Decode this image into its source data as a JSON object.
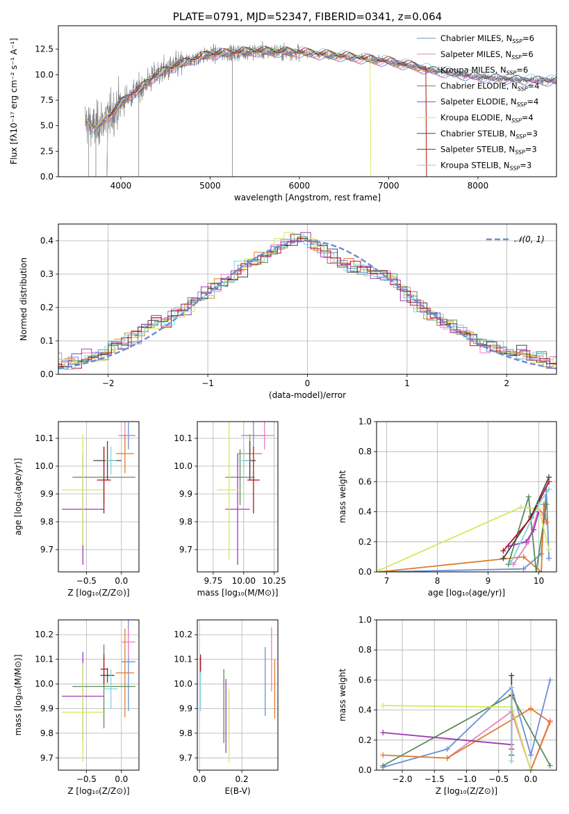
{
  "colors": {
    "Chabrier MILES": "#6a8fd8",
    "Salpeter MILES": "#e87fbf",
    "Kroupa MILES": "#e07a2e",
    "Chabrier ELODIE": "#5c8a5c",
    "Salpeter ELODIE": "#9a3cb0",
    "Kroupa ELODIE": "#d4e85a",
    "Chabrier STELIB": "#444444",
    "Salpeter STELIB": "#b3121b",
    "Kroupa STELIB": "#80d4e0",
    "data": "#808080",
    "normal": "#6a8fd8",
    "grid": "#b0b0b0"
  },
  "chart_data": [
    {
      "id": "spectrum",
      "type": "line",
      "title": "PLATE=0791, MJD=52347, FIBERID=0341, z=0.064",
      "xlabel": "wavelength [Angstrom, rest frame]",
      "ylabel": "Flux [fλ10⁻¹⁷ erg cm⁻² s⁻¹ A⁻¹]",
      "xlim": [
        3300,
        8880
      ],
      "ylim": [
        0,
        14.8
      ],
      "xticks": [
        4000,
        5000,
        6000,
        7000,
        8000
      ],
      "yticks": [
        0.0,
        2.5,
        5.0,
        7.5,
        10.0,
        12.5
      ],
      "grid": false,
      "legend_position": "top-right",
      "legend": [
        {
          "model": "Chabrier MILES",
          "label": "Chabrier MILES, N_SSP=6"
        },
        {
          "model": "Salpeter MILES",
          "label": "Salpeter MILES, N_SSP=6"
        },
        {
          "model": "Kroupa MILES",
          "label": "Kroupa MILES, N_SSP=6"
        },
        {
          "model": "Chabrier ELODIE",
          "label": "Chabrier ELODIE, N_SSP=4"
        },
        {
          "model": "Salpeter ELODIE",
          "label": "Salpeter ELODIE, N_SSP=4"
        },
        {
          "model": "Kroupa ELODIE",
          "label": "Kroupa ELODIE, N_SSP=4"
        },
        {
          "model": "Chabrier STELIB",
          "label": "Chabrier STELIB, N_SSP=3"
        },
        {
          "model": "Salpeter STELIB",
          "label": "Salpeter STELIB, N_SSP=3"
        },
        {
          "model": "Kroupa STELIB",
          "label": "Kroupa STELIB, N_SSP=3"
        }
      ],
      "continuum": {
        "wavelength": [
          3600,
          3700,
          3800,
          3900,
          4000,
          4100,
          4200,
          4300,
          4400,
          4600,
          4800,
          5000,
          5500,
          6000,
          6500,
          7000,
          7300,
          7500,
          8000,
          8500,
          8880
        ],
        "flux": [
          5.5,
          4.8,
          5.5,
          6.2,
          7.2,
          8.0,
          8.5,
          9.3,
          10.0,
          10.8,
          11.5,
          12.0,
          12.3,
          12.2,
          11.8,
          11.3,
          10.8,
          10.4,
          9.8,
          9.5,
          9.4
        ]
      }
    },
    {
      "id": "residuals",
      "type": "histogram",
      "xlabel": "(data-model)/error",
      "ylabel": "Normed distribution",
      "xlim": [
        -2.5,
        2.5
      ],
      "ylim": [
        0,
        0.45
      ],
      "xticks": [
        -2,
        -1,
        0,
        1,
        2
      ],
      "yticks": [
        0.0,
        0.1,
        0.2,
        0.3,
        0.4
      ],
      "grid": true,
      "legend_position": "top-right",
      "reference_label": "𝒩(0, 1)",
      "profile": {
        "x": [
          -2.4,
          -2.2,
          -2.0,
          -1.8,
          -1.6,
          -1.4,
          -1.2,
          -1.0,
          -0.8,
          -0.6,
          -0.4,
          -0.2,
          0.0,
          0.2,
          0.4,
          0.6,
          0.8,
          1.0,
          1.2,
          1.4,
          1.6,
          1.8,
          2.0,
          2.2,
          2.4
        ],
        "y": [
          0.03,
          0.05,
          0.07,
          0.1,
          0.15,
          0.16,
          0.2,
          0.25,
          0.28,
          0.33,
          0.36,
          0.4,
          0.41,
          0.36,
          0.33,
          0.31,
          0.3,
          0.24,
          0.18,
          0.15,
          0.12,
          0.09,
          0.07,
          0.06,
          0.04
        ]
      }
    },
    {
      "id": "age-vs-Z",
      "type": "scatter",
      "xlabel": "Z [log₁₀(Z/Z⊙)]",
      "ylabel": "age  [log₁₀(age/yr)]",
      "xlim": [
        -0.9,
        0.25
      ],
      "ylim": [
        9.62,
        10.16
      ],
      "xticks": [
        -0.5,
        0.0
      ],
      "yticks": [
        9.7,
        9.8,
        9.9,
        10.0,
        10.1
      ],
      "grid": true,
      "points": [
        {
          "model": "Chabrier MILES",
          "x": 0.1,
          "y": 10.11,
          "xerr": 0.1,
          "yerr": 0.05
        },
        {
          "model": "Salpeter MILES",
          "x": 0.05,
          "y": 10.11,
          "xerr": 0.1,
          "yerr": 0.05
        },
        {
          "model": "Kroupa MILES",
          "x": 0.05,
          "y": 10.045,
          "xerr": 0.13,
          "yerr": 0.07
        },
        {
          "model": "Chabrier ELODIE",
          "x": -0.25,
          "y": 9.96,
          "xerr": 0.45,
          "yerr": 0.1
        },
        {
          "model": "Salpeter ELODIE",
          "x": -0.55,
          "y": 9.845,
          "xerr": 0.3,
          "yerr": 0.2
        },
        {
          "model": "Kroupa ELODIE",
          "x": -0.55,
          "y": 9.915,
          "xerr": 0.3,
          "yerr": 0.2
        },
        {
          "model": "Chabrier STELIB",
          "x": -0.2,
          "y": 10.02,
          "xerr": 0.2,
          "yerr": 0.07
        },
        {
          "model": "Salpeter STELIB",
          "x": -0.25,
          "y": 9.95,
          "xerr": 0.1,
          "yerr": 0.12
        },
        {
          "model": "Kroupa STELIB",
          "x": -0.15,
          "y": 10.02,
          "xerr": 0.08,
          "yerr": 0.05
        }
      ]
    },
    {
      "id": "age-vs-mass",
      "type": "scatter",
      "xlabel": "mass [log₁₀(M/M⊙)]",
      "ylabel": "",
      "xlim": [
        9.62,
        10.28
      ],
      "ylim": [
        9.62,
        10.16
      ],
      "xticks": [
        9.75,
        10.0,
        10.25
      ],
      "yticks": [
        9.7,
        9.8,
        9.9,
        10.0,
        10.1
      ],
      "grid": true,
      "points": [
        {
          "model": "Chabrier MILES",
          "x": 10.08,
          "y": 10.11,
          "xerr": 0.1,
          "yerr": 0.05
        },
        {
          "model": "Salpeter MILES",
          "x": 10.17,
          "y": 10.11,
          "xerr": 0.08,
          "yerr": 0.05
        },
        {
          "model": "Kroupa MILES",
          "x": 10.05,
          "y": 10.045,
          "xerr": 0.1,
          "yerr": 0.07
        },
        {
          "model": "Chabrier ELODIE",
          "x": 9.97,
          "y": 9.96,
          "xerr": 0.12,
          "yerr": 0.1
        },
        {
          "model": "Salpeter ELODIE",
          "x": 9.95,
          "y": 9.845,
          "xerr": 0.1,
          "yerr": 0.2
        },
        {
          "model": "Kroupa ELODIE",
          "x": 9.88,
          "y": 9.915,
          "xerr": 0.1,
          "yerr": 0.25
        },
        {
          "model": "Chabrier STELIB",
          "x": 10.05,
          "y": 10.02,
          "xerr": 0.05,
          "yerr": 0.07
        },
        {
          "model": "Salpeter STELIB",
          "x": 10.08,
          "y": 9.95,
          "xerr": 0.05,
          "yerr": 0.12
        },
        {
          "model": "Kroupa STELIB",
          "x": 10.0,
          "y": 10.02,
          "xerr": 0.05,
          "yerr": 0.05
        }
      ]
    },
    {
      "id": "weight-vs-age",
      "type": "line",
      "xlabel": "age  [log₁₀(age/yr)]",
      "ylabel": "mass weight",
      "xlim": [
        6.8,
        10.35
      ],
      "ylim": [
        0,
        1.0
      ],
      "xticks": [
        7,
        8,
        9,
        10
      ],
      "yticks": [
        0.0,
        0.2,
        0.4,
        0.6,
        0.8,
        1.0
      ],
      "grid": true,
      "series": [
        {
          "model": "Chabrier MILES",
          "x": [
            6.85,
            9.7,
            10.05,
            10.15,
            10.2
          ],
          "y": [
            0.0,
            0.02,
            0.12,
            0.55,
            0.09
          ]
        },
        {
          "model": "Salpeter MILES",
          "x": [
            9.5,
            9.8,
            10.0,
            10.1,
            10.15
          ],
          "y": [
            0.05,
            0.2,
            0.42,
            0.38,
            0.33
          ]
        },
        {
          "model": "Kroupa MILES",
          "x": [
            6.85,
            9.7,
            10.05,
            10.1,
            10.15
          ],
          "y": [
            0.0,
            0.1,
            0.0,
            0.45,
            0.33
          ]
        },
        {
          "model": "Chabrier ELODIE",
          "x": [
            9.4,
            9.8,
            9.95,
            10.15
          ],
          "y": [
            0.05,
            0.5,
            0.0,
            0.45
          ]
        },
        {
          "model": "Salpeter ELODIE",
          "x": [
            9.4,
            9.75,
            9.9,
            10.0
          ],
          "y": [
            0.17,
            0.2,
            0.28,
            0.4
          ]
        },
        {
          "model": "Kroupa ELODIE",
          "x": [
            6.85,
            9.65,
            10.0,
            10.2
          ],
          "y": [
            0.01,
            0.43,
            0.42,
            0.15
          ]
        },
        {
          "model": "Chabrier STELIB",
          "x": [
            9.3,
            9.85,
            10.2
          ],
          "y": [
            0.09,
            0.37,
            0.63
          ]
        },
        {
          "model": "Salpeter STELIB",
          "x": [
            9.3,
            9.85,
            10.2
          ],
          "y": [
            0.14,
            0.36,
            0.6
          ]
        },
        {
          "model": "Kroupa STELIB",
          "x": [
            9.45,
            10.0,
            10.2
          ],
          "y": [
            0.06,
            0.45,
            0.55
          ]
        }
      ]
    },
    {
      "id": "mass-vs-Z",
      "type": "scatter",
      "xlabel": "Z [log₁₀(Z/Z⊙)]",
      "ylabel": "mass [log₁₀(M/M⊙)]",
      "xlim": [
        -0.9,
        0.25
      ],
      "ylim": [
        9.65,
        10.26
      ],
      "xticks": [
        -0.5,
        0.0
      ],
      "yticks": [
        9.7,
        9.8,
        9.9,
        10.0,
        10.1,
        10.2
      ],
      "grid": true,
      "points": [
        {
          "model": "Chabrier MILES",
          "x": 0.1,
          "y": 10.09,
          "xerr": 0.1,
          "yerr": 0.2
        },
        {
          "model": "Salpeter MILES",
          "x": 0.1,
          "y": 10.17,
          "xerr": 0.1,
          "yerr": 0.06
        },
        {
          "model": "Kroupa MILES",
          "x": 0.05,
          "y": 10.045,
          "xerr": 0.13,
          "yerr": 0.18
        },
        {
          "model": "Chabrier ELODIE",
          "x": -0.25,
          "y": 9.99,
          "xerr": 0.45,
          "yerr": 0.17
        },
        {
          "model": "Salpeter ELODIE",
          "x": -0.55,
          "y": 9.95,
          "xerr": 0.3,
          "yerr": 0.18
        },
        {
          "model": "Kroupa ELODIE",
          "x": -0.55,
          "y": 9.885,
          "xerr": 0.3,
          "yerr": 0.2
        },
        {
          "model": "Chabrier STELIB",
          "x": -0.2,
          "y": 10.035,
          "xerr": 0.1,
          "yerr": 0.03
        },
        {
          "model": "Salpeter STELIB",
          "x": -0.25,
          "y": 10.06,
          "xerr": 0.05,
          "yerr": 0.06
        },
        {
          "model": "Kroupa STELIB",
          "x": -0.15,
          "y": 9.98,
          "xerr": 0.1,
          "yerr": 0.08
        }
      ]
    },
    {
      "id": "mass-vs-ebv",
      "type": "scatter",
      "xlabel": "E(B-V)",
      "ylabel": "",
      "xlim": [
        -0.01,
        0.37
      ],
      "ylim": [
        9.65,
        10.26
      ],
      "xticks": [
        0.0,
        0.2
      ],
      "yticks": [
        9.7,
        9.8,
        9.9,
        10.0,
        10.1,
        10.2
      ],
      "grid": true,
      "points": [
        {
          "model": "Chabrier MILES",
          "x": 0.31,
          "y": 10.01,
          "yerr": 0.14
        },
        {
          "model": "Salpeter MILES",
          "x": 0.34,
          "y": 10.1,
          "yerr": 0.13
        },
        {
          "model": "Kroupa MILES",
          "x": 0.355,
          "y": 9.98,
          "yerr": 0.12
        },
        {
          "model": "Chabrier ELODIE",
          "x": 0.115,
          "y": 9.91,
          "yerr": 0.15
        },
        {
          "model": "Salpeter ELODIE",
          "x": 0.125,
          "y": 9.87,
          "yerr": 0.15
        },
        {
          "model": "Kroupa ELODIE",
          "x": 0.14,
          "y": 9.83,
          "yerr": 0.15
        },
        {
          "model": "Chabrier STELIB",
          "x": 0.005,
          "y": 10.08,
          "yerr": 0.03
        },
        {
          "model": "Salpeter STELIB",
          "x": 0.005,
          "y": 10.08,
          "yerr": 0.04
        },
        {
          "model": "Kroupa STELIB",
          "x": 0.005,
          "y": 9.97,
          "yerr": 0.08
        }
      ]
    },
    {
      "id": "weight-vs-Z",
      "type": "line",
      "xlabel": "Z [log₁₀(Z/Z⊙)]",
      "ylabel": "mass weight",
      "xlim": [
        -2.4,
        0.4
      ],
      "ylim": [
        0,
        1.0
      ],
      "xticks": [
        -2.0,
        -1.5,
        -1.0,
        -0.5,
        0.0
      ],
      "yticks": [
        0.0,
        0.2,
        0.4,
        0.6,
        0.8,
        1.0
      ],
      "grid": true,
      "series": [
        {
          "model": "Chabrier MILES",
          "x": [
            -2.3,
            -1.3,
            -0.3,
            0.0,
            0.3
          ],
          "y": [
            0.02,
            0.14,
            0.55,
            0.1,
            0.6
          ]
        },
        {
          "model": "Salpeter MILES",
          "x": [
            -1.3,
            -0.3,
            0.0,
            0.3
          ],
          "y": [
            0.08,
            0.39,
            0.0,
            0.33
          ]
        },
        {
          "model": "Kroupa MILES",
          "x": [
            -2.3,
            -1.3,
            0.0,
            0.3,
            0.0
          ],
          "y": [
            0.1,
            0.08,
            0.41,
            0.32,
            0.0
          ]
        },
        {
          "model": "Chabrier ELODIE",
          "x": [
            -2.3,
            -0.3,
            0.3
          ],
          "y": [
            0.03,
            0.5,
            0.03
          ]
        },
        {
          "model": "Salpeter ELODIE",
          "x": [
            -2.3,
            -0.3
          ],
          "y": [
            0.25,
            0.17
          ]
        },
        {
          "model": "Kroupa ELODIE",
          "x": [
            -2.3,
            -0.3,
            0.0
          ],
          "y": [
            0.43,
            0.42,
            0.0
          ]
        },
        {
          "model": "Chabrier STELIB",
          "x": [
            -0.3,
            -0.3
          ],
          "y": [
            0.1,
            0.63
          ]
        },
        {
          "model": "Salpeter STELIB",
          "x": [
            -0.3,
            -0.3
          ],
          "y": [
            0.14,
            0.5
          ]
        },
        {
          "model": "Kroupa STELIB",
          "x": [
            -0.3,
            -0.3
          ],
          "y": [
            0.06,
            0.55
          ]
        }
      ]
    }
  ]
}
